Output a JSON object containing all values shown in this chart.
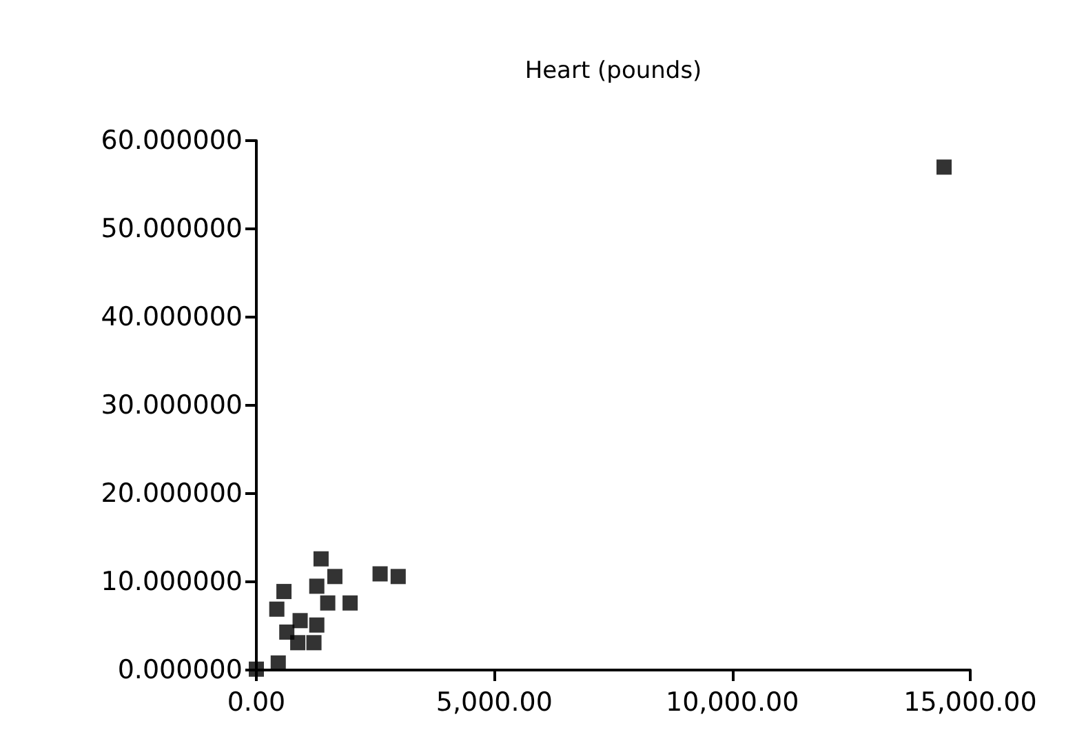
{
  "chart_data": {
    "type": "scatter",
    "title": "Heart (pounds)",
    "x": [
      14450,
      1360,
      1650,
      2600,
      2980,
      580,
      1270,
      1500,
      1970,
      430,
      920,
      1270,
      870,
      1210,
      0,
      460,
      640
    ],
    "values": [
      57,
      12.6,
      10.6,
      10.9,
      10.6,
      8.9,
      9.5,
      7.6,
      7.6,
      6.9,
      5.6,
      5.1,
      3.1,
      3.1,
      0.1,
      0.8,
      4.3
    ],
    "color": "#000000",
    "marker": "square",
    "grid": false,
    "xlim": [
      0,
      15000
    ],
    "xticks": [
      {
        "value": 0,
        "label": "0.00"
      },
      {
        "value": 5000,
        "label": "5,000.00"
      },
      {
        "value": 10000,
        "label": "10,000.00"
      },
      {
        "value": 15000,
        "label": "15,000.00"
      }
    ],
    "ylim": [
      0,
      60
    ],
    "yticks": [
      {
        "value": 0,
        "label": "0.000000"
      },
      {
        "value": 10,
        "label": "10.000000"
      },
      {
        "value": 20,
        "label": "20.000000"
      },
      {
        "value": 30,
        "label": "30.000000"
      },
      {
        "value": 40,
        "label": "40.000000"
      },
      {
        "value": 50,
        "label": "50.000000"
      },
      {
        "value": 60,
        "label": "60.000000"
      }
    ]
  }
}
